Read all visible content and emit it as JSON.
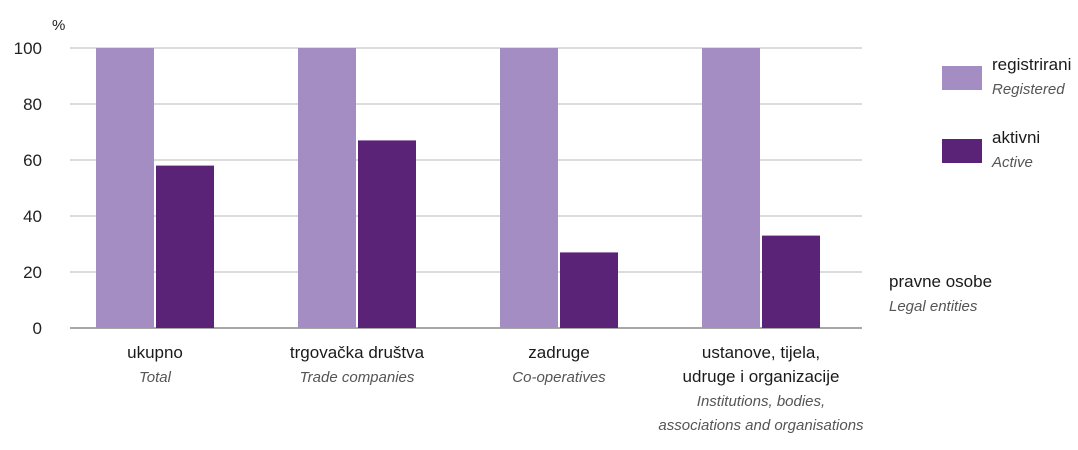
{
  "chart_data": {
    "type": "bar",
    "y_unit": "%",
    "ylim": [
      0,
      100
    ],
    "yticks": [
      0,
      20,
      40,
      60,
      80,
      100
    ],
    "grid": true,
    "legend_placement": "right",
    "categories": [
      {
        "label": "ukupno",
        "sublabel": "Total",
        "sublabel2": ""
      },
      {
        "label": "trgovačka društva",
        "sublabel": "Trade companies",
        "sublabel2": ""
      },
      {
        "label": "zadruge",
        "sublabel": "Co-operatives",
        "sublabel2": ""
      },
      {
        "label": "ustanove, tijela,",
        "label2": "udruge i organizacije",
        "sublabel": "Institutions, bodies,",
        "sublabel2": "associations and organisations"
      }
    ],
    "series": [
      {
        "name": "registrirani",
        "name_en": "Registered",
        "color": "#a38dc2",
        "values": [
          100,
          100,
          100,
          100
        ]
      },
      {
        "name": "aktivni",
        "name_en": "Active",
        "color": "#5a2377",
        "values": [
          58,
          67,
          27,
          33
        ]
      }
    ],
    "note": {
      "label": "pravne osobe",
      "sublabel": "Legal entities"
    }
  }
}
